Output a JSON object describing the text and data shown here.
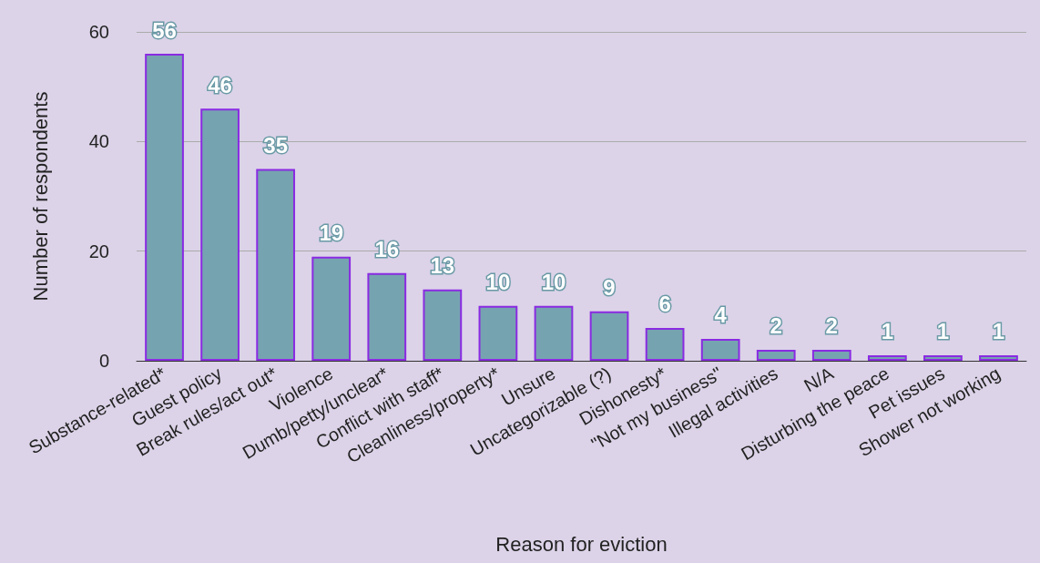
{
  "chart_data": {
    "type": "bar",
    "xlabel": "Reason for eviction",
    "ylabel": "Number of respondents",
    "categories": [
      "Substance-related*",
      "Guest policy",
      "Break rules/act out*",
      "Violence",
      "Dumb/petty/unclear*",
      "Conflict with staff*",
      "Cleanliness/property*",
      "Unsure",
      "Uncategorizable (?)",
      "Dishonesty*",
      "\"Not my business\"",
      "Illegal activities",
      "N/A",
      "Disturbing the peace",
      "Pet issues",
      "Shower not working"
    ],
    "values": [
      56,
      46,
      35,
      19,
      16,
      13,
      10,
      10,
      9,
      6,
      4,
      2,
      2,
      1,
      1,
      1
    ],
    "color": "#76a3b0",
    "ylim": [
      0,
      60
    ],
    "yticks": [
      0,
      20,
      40,
      60
    ],
    "grid": "y",
    "data_labels": true
  }
}
